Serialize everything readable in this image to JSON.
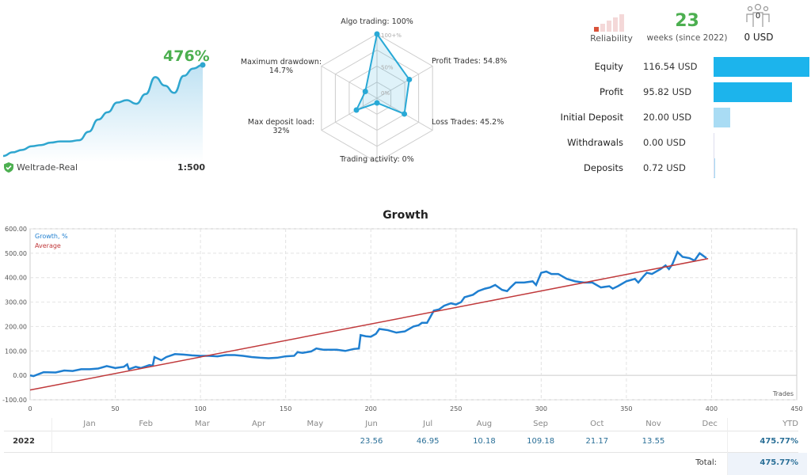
{
  "mini_chart": {
    "growth_label": "476%",
    "broker": "Weltrade-Real",
    "leverage": "1:500",
    "color": "#2fa6cf",
    "points": [
      0,
      3,
      5,
      8,
      9,
      11,
      12,
      12,
      13,
      20,
      30,
      36,
      44,
      46,
      43,
      51,
      65,
      58,
      52,
      66,
      72,
      75
    ]
  },
  "radar": {
    "axes": [
      {
        "label": "Algo trading: 100%",
        "value": 100
      },
      {
        "label": "Profit Trades: 54.8%",
        "value": 54.8
      },
      {
        "label": "Loss Trades: 45.2%",
        "value": 45.2
      },
      {
        "label": "Trading activity: 0%",
        "value": 0
      },
      {
        "label": "Max deposit load:",
        "value_text": "32%",
        "value": 32
      },
      {
        "label": "Maximum drawdown:",
        "value_text": "14.7%",
        "value": 14.7
      }
    ],
    "ring_labels": [
      "100+%",
      "50%",
      "0%"
    ],
    "color": "#29a9d6"
  },
  "stats": {
    "reliability_label": "Reliability",
    "reliability_level": 1,
    "weeks": "23",
    "weeks_label": "weeks (since 2022)",
    "subscribers": "0",
    "subscribers_usd": "0 USD"
  },
  "balances": [
    {
      "label": "Equity",
      "value": "116.54 USD",
      "amount": 116.54,
      "color": "#1cb4ec"
    },
    {
      "label": "Profit",
      "value": "95.82 USD",
      "amount": 95.82,
      "color": "#1cb4ec"
    },
    {
      "label": "Initial Deposit",
      "value": "20.00 USD",
      "amount": 20.0,
      "color": "#a9dcf4"
    },
    {
      "label": "Withdrawals",
      "value": "0.00 USD",
      "amount": 0,
      "color": "#a9dcf4"
    },
    {
      "label": "Deposits",
      "value": "0.72 USD",
      "amount": 0.72,
      "color": "#a9dcf4"
    }
  ],
  "chart_data": {
    "type": "line",
    "title": "Growth",
    "xlabel": "Trades",
    "ylabel": "",
    "xlim": [
      0,
      450
    ],
    "ylim": [
      -100,
      600
    ],
    "xticks": [
      0,
      50,
      100,
      150,
      200,
      250,
      300,
      350,
      400,
      450
    ],
    "yticks": [
      "-100.00",
      "0.00",
      "100.00",
      "200.00",
      "300.00",
      "400.00",
      "500.00",
      "600.00"
    ],
    "grid": true,
    "legend": "top-left",
    "series": [
      {
        "name": "Growth, %",
        "color": "#1f7fd0",
        "x": [
          0,
          2,
          5,
          8,
          15,
          20,
          25,
          30,
          35,
          40,
          45,
          50,
          55,
          57,
          58,
          62,
          65,
          70,
          72,
          73,
          77,
          80,
          85,
          90,
          95,
          100,
          105,
          110,
          115,
          120,
          125,
          130,
          135,
          140,
          145,
          150,
          155,
          157,
          160,
          165,
          168,
          172,
          180,
          185,
          190,
          193,
          194,
          197,
          200,
          203,
          205,
          210,
          215,
          220,
          225,
          228,
          230,
          233,
          235,
          237,
          240,
          243,
          247,
          250,
          253,
          255,
          260,
          263,
          267,
          270,
          273,
          277,
          280,
          282,
          285,
          290,
          295,
          297,
          300,
          303,
          306,
          310,
          315,
          320,
          325,
          330,
          335,
          340,
          342,
          345,
          350,
          355,
          357,
          360,
          362,
          365,
          370,
          373,
          375,
          377,
          380,
          383,
          387,
          390,
          393,
          395,
          397
        ],
        "y": [
          0,
          -3,
          5,
          13,
          12,
          20,
          18,
          25,
          25,
          28,
          38,
          30,
          35,
          45,
          25,
          35,
          30,
          42,
          40,
          75,
          62,
          75,
          87,
          85,
          82,
          80,
          80,
          78,
          83,
          83,
          80,
          75,
          72,
          70,
          72,
          78,
          80,
          95,
          92,
          98,
          110,
          105,
          105,
          100,
          108,
          110,
          165,
          160,
          158,
          170,
          190,
          185,
          175,
          180,
          200,
          205,
          215,
          215,
          240,
          265,
          270,
          285,
          295,
          290,
          300,
          320,
          330,
          345,
          355,
          360,
          370,
          350,
          345,
          360,
          380,
          380,
          385,
          370,
          420,
          425,
          415,
          415,
          395,
          385,
          380,
          380,
          360,
          365,
          355,
          365,
          385,
          395,
          380,
          405,
          420,
          415,
          435,
          450,
          435,
          455,
          505,
          485,
          480,
          470,
          500,
          490,
          480
        ]
      },
      {
        "name": "Average",
        "color": "#c0393b",
        "x": [
          0,
          398
        ],
        "y": [
          -60,
          478
        ]
      }
    ]
  },
  "monthly": {
    "months": [
      "Jan",
      "Feb",
      "Mar",
      "Apr",
      "May",
      "Jun",
      "Jul",
      "Aug",
      "Sep",
      "Oct",
      "Nov",
      "Dec"
    ],
    "ytd_label": "YTD",
    "rows": [
      {
        "year": "2022",
        "values": [
          "",
          "",
          "",
          "",
          "",
          "23.56",
          "46.95",
          "10.18",
          "109.18",
          "21.17",
          "13.55",
          ""
        ],
        "ytd": "475.77%"
      }
    ],
    "total_label": "Total:",
    "total": "475.77%"
  }
}
